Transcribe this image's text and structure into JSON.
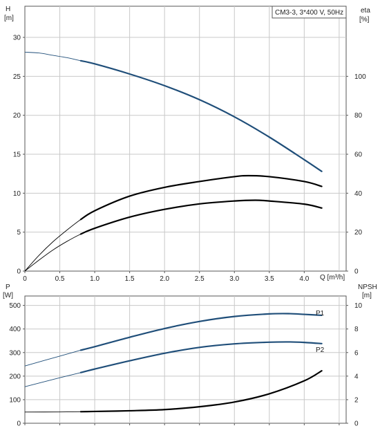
{
  "chart_data": [
    {
      "type": "line",
      "title": "CM3-3, 3*400 V, 50Hz",
      "xlabel": "Q [m³/h]",
      "x_ticks": [
        "0",
        "0.5",
        "1.0",
        "1.5",
        "2.0",
        "2.5",
        "3.0",
        "3.5",
        "4.0"
      ],
      "xlim": [
        0,
        4.6
      ],
      "y_left": {
        "label": "H",
        "unit": "[m]",
        "lim": [
          0,
          34
        ],
        "ticks": [
          "0",
          "5",
          "10",
          "15",
          "20",
          "25",
          "30"
        ]
      },
      "y_right": {
        "label": "eta",
        "unit": "[%]",
        "lim": [
          0,
          136
        ],
        "ticks": [
          "0",
          "20",
          "40",
          "60",
          "80",
          "100"
        ]
      },
      "grid": true,
      "series": [
        {
          "axis": "left",
          "color": "#1f4e79",
          "x": [
            0,
            0.2,
            0.4,
            0.6,
            0.8,
            1.0,
            1.5,
            2.0,
            2.5,
            3.0,
            3.5,
            4.0,
            4.25
          ],
          "y": [
            28.1,
            28.0,
            27.7,
            27.4,
            27.0,
            26.6,
            25.3,
            23.8,
            22.0,
            19.8,
            17.2,
            14.3,
            12.8
          ]
        },
        {
          "axis": "right",
          "color": "#000000",
          "x": [
            0,
            0.2,
            0.4,
            0.6,
            0.8,
            1.0,
            1.5,
            2.0,
            2.5,
            3.0,
            3.2,
            3.5,
            4.0,
            4.25
          ],
          "y": [
            0,
            8,
            15,
            21,
            26.5,
            31,
            38.5,
            43,
            46,
            48.5,
            49,
            48.5,
            46,
            43.5
          ]
        },
        {
          "axis": "right",
          "color": "#000000",
          "x": [
            0,
            0.2,
            0.4,
            0.6,
            0.8,
            1.0,
            1.5,
            2.0,
            2.5,
            3.0,
            3.3,
            3.5,
            4.0,
            4.25
          ],
          "y": [
            0,
            5.6,
            10.8,
            15.2,
            19,
            22,
            27.7,
            31.7,
            34.5,
            36,
            36.4,
            36,
            34.4,
            32.4
          ]
        }
      ]
    },
    {
      "type": "line",
      "xlim": [
        0,
        4.6
      ],
      "y_left": {
        "label": "P",
        "unit": "[W]",
        "lim": [
          0,
          540
        ],
        "ticks": [
          "0",
          "100",
          "200",
          "300",
          "400",
          "500"
        ]
      },
      "y_right": {
        "label": "NPSH",
        "unit": "[m]",
        "lim": [
          0,
          10.8
        ],
        "ticks": [
          "0",
          "2",
          "4",
          "6",
          "8",
          "10"
        ]
      },
      "grid": true,
      "series": [
        {
          "name": "P1",
          "axis": "left",
          "color": "#1f4e79",
          "x": [
            0,
            0.5,
            0.8,
            1.0,
            1.5,
            2.0,
            2.5,
            3.0,
            3.5,
            3.8,
            4.0,
            4.25
          ],
          "y": [
            243,
            285,
            310,
            325,
            365,
            402,
            432,
            453,
            464,
            465,
            462,
            458
          ]
        },
        {
          "name": "P2",
          "axis": "left",
          "color": "#1f4e79",
          "x": [
            0,
            0.5,
            0.8,
            1.0,
            1.5,
            2.0,
            2.5,
            3.0,
            3.5,
            3.8,
            4.0,
            4.25
          ],
          "y": [
            155,
            193,
            215,
            230,
            265,
            297,
            322,
            337,
            344,
            345,
            343,
            338
          ]
        },
        {
          "axis": "right",
          "color": "#000000",
          "x": [
            0,
            0.5,
            0.8,
            1.0,
            1.5,
            2.0,
            2.5,
            3.0,
            3.5,
            4.0,
            4.25
          ],
          "y": [
            0.95,
            0.96,
            0.98,
            1.0,
            1.06,
            1.16,
            1.4,
            1.8,
            2.5,
            3.6,
            4.45
          ]
        }
      ]
    }
  ]
}
